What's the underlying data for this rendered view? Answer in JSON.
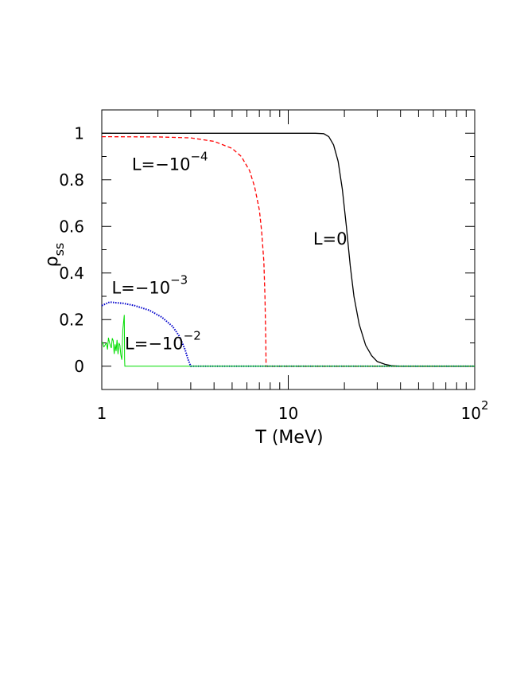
{
  "chart_data": {
    "type": "line",
    "xscale": "log",
    "xlim": [
      1,
      100
    ],
    "ylim": [
      -0.1,
      1.1
    ],
    "xlabel": "T (MeV)",
    "ylabel": {
      "base": "ρ",
      "sub": "ss"
    },
    "grid": false,
    "x_ticks": [
      {
        "value": 1,
        "label": "1"
      },
      {
        "value": 10,
        "label": "10"
      },
      {
        "value": 100,
        "label": "10",
        "sup": "2"
      }
    ],
    "y_ticks": [
      {
        "value": 0,
        "label": "0"
      },
      {
        "value": 0.2,
        "label": "0.2"
      },
      {
        "value": 0.4,
        "label": "0.4"
      },
      {
        "value": 0.6,
        "label": "0.6"
      },
      {
        "value": 0.8,
        "label": "0.8"
      },
      {
        "value": 1,
        "label": "1"
      }
    ],
    "series": [
      {
        "name": "L=0",
        "label_base": "L=0",
        "label_sup": "",
        "color": "#000000",
        "style": "solid",
        "label_at": {
          "x": 13.6,
          "y": 0.55
        },
        "points": [
          [
            1,
            1
          ],
          [
            5,
            1
          ],
          [
            10,
            1
          ],
          [
            14,
            1
          ],
          [
            15.5,
            0.998
          ],
          [
            16.5,
            0.985
          ],
          [
            17.5,
            0.95
          ],
          [
            18.5,
            0.88
          ],
          [
            19.5,
            0.76
          ],
          [
            20.5,
            0.6
          ],
          [
            21.5,
            0.43
          ],
          [
            22.5,
            0.3
          ],
          [
            24,
            0.18
          ],
          [
            26,
            0.09
          ],
          [
            28,
            0.045
          ],
          [
            30,
            0.02
          ],
          [
            33,
            0.008
          ],
          [
            36,
            0.002
          ],
          [
            40,
            0
          ],
          [
            100,
            0
          ]
        ]
      },
      {
        "name": "L=−10−4",
        "label_base": "L=−10",
        "label_sup": "−4",
        "color": "#ff0000",
        "style": "dashed",
        "label_at": {
          "x": 1.45,
          "y": 0.87
        },
        "points": [
          [
            1,
            0.985
          ],
          [
            2,
            0.984
          ],
          [
            3,
            0.98
          ],
          [
            4,
            0.965
          ],
          [
            5,
            0.935
          ],
          [
            5.6,
            0.9
          ],
          [
            6.2,
            0.84
          ],
          [
            6.6,
            0.77
          ],
          [
            7,
            0.67
          ],
          [
            7.2,
            0.58
          ],
          [
            7.4,
            0.45
          ],
          [
            7.5,
            0.3
          ],
          [
            7.58,
            0.1
          ],
          [
            7.6,
            0
          ],
          [
            100,
            0
          ]
        ]
      },
      {
        "name": "L=−10−3",
        "label_base": "L=−10",
        "label_sup": "−3",
        "color": "#0000cc",
        "style": "dotted",
        "label_at": {
          "x": 1.13,
          "y": 0.34
        },
        "points": [
          [
            1,
            0.26
          ],
          [
            1.1,
            0.275
          ],
          [
            1.3,
            0.27
          ],
          [
            1.5,
            0.26
          ],
          [
            1.8,
            0.24
          ],
          [
            2.1,
            0.21
          ],
          [
            2.4,
            0.17
          ],
          [
            2.6,
            0.13
          ],
          [
            2.8,
            0.07
          ],
          [
            2.9,
            0.03
          ],
          [
            3.0,
            0
          ],
          [
            100,
            0
          ]
        ]
      },
      {
        "name": "L=−10−2",
        "label_base": "L=−10",
        "label_sup": "−2",
        "color": "#00dd00",
        "style": "noisy",
        "label_at": {
          "x": 1.33,
          "y": 0.1
        },
        "points": [
          [
            1,
            0.1
          ],
          [
            1.3,
            0.09
          ],
          [
            1.32,
            0.22
          ],
          [
            1.33,
            0
          ],
          [
            100,
            0
          ]
        ]
      }
    ]
  }
}
